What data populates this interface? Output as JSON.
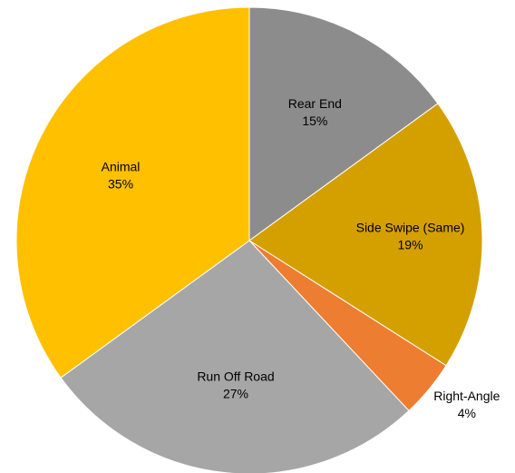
{
  "chart_data": {
    "type": "pie",
    "title": "",
    "categories": [
      "Rear End",
      "Side Swipe (Same)",
      "Right-Angle",
      "Run Off Road",
      "Animal"
    ],
    "values": [
      15,
      19,
      4,
      27,
      35
    ],
    "percent_labels": [
      "15%",
      "19%",
      "4%",
      "27%",
      "35%"
    ],
    "colors": [
      "#8c8c8c",
      "#d4a000",
      "#ed7d31",
      "#a6a6a6",
      "#ffc000"
    ],
    "start": "12 o'clock",
    "direction": "clockwise",
    "legend": "none"
  }
}
